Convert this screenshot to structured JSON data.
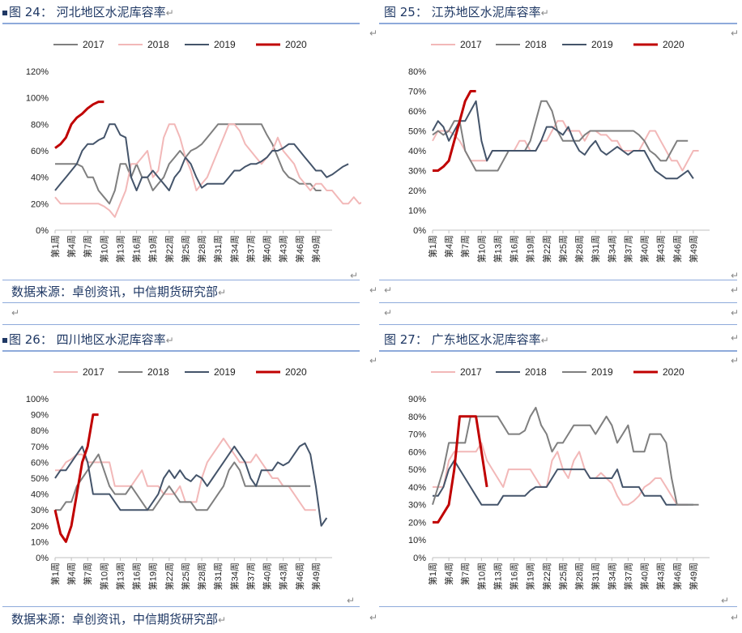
{
  "figures": [
    {
      "caption": "图 24：  河北地区水泥库容率",
      "chart_data": {
        "type": "line",
        "title": "",
        "ylim": [
          0,
          120
        ],
        "yticks": [
          "0%",
          "20%",
          "40%",
          "60%",
          "80%",
          "100%",
          "120%"
        ],
        "xticks": [
          "第1周",
          "第4周",
          "第7周",
          "第10周",
          "第13周",
          "第16周",
          "第19周",
          "第22周",
          "第25周",
          "第28周",
          "第31周",
          "第34周",
          "第37周",
          "第40周",
          "第43周",
          "第46周",
          "第49周"
        ],
        "legend_position": "top",
        "series": [
          {
            "name": "2017",
            "color": "#7f7f7f",
            "values": [
              50,
              50,
              50,
              50,
              50,
              48,
              40,
              40,
              30,
              25,
              20,
              30,
              50,
              50,
              40,
              50,
              40,
              40,
              30,
              35,
              40,
              50,
              55,
              60,
              55,
              60,
              62,
              65,
              70,
              75,
              80,
              80,
              80,
              80,
              80,
              80,
              80,
              80,
              80,
              72,
              65,
              55,
              45,
              40,
              38,
              35,
              35,
              35,
              30,
              30
            ]
          },
          {
            "name": "2018",
            "color": "#f2b8b8",
            "values": [
              25,
              20,
              20,
              20,
              20,
              20,
              20,
              20,
              20,
              18,
              15,
              10,
              20,
              30,
              50,
              50,
              55,
              60,
              40,
              45,
              70,
              80,
              80,
              70,
              55,
              45,
              30,
              35,
              40,
              50,
              60,
              70,
              80,
              80,
              75,
              65,
              60,
              55,
              50,
              55,
              60,
              70,
              60,
              55,
              50,
              40,
              35,
              30,
              35,
              35,
              30,
              30,
              25,
              20,
              20,
              25,
              20,
              22,
              30
            ]
          },
          {
            "name": "2019",
            "color": "#44546a",
            "values": [
              30,
              35,
              40,
              45,
              50,
              60,
              65,
              65,
              68,
              70,
              80,
              80,
              72,
              70,
              40,
              30,
              40,
              40,
              45,
              40,
              35,
              30,
              40,
              45,
              55,
              50,
              40,
              32,
              35,
              35,
              35,
              35,
              40,
              45,
              45,
              48,
              50,
              50,
              52,
              55,
              60,
              60,
              62,
              65,
              65,
              60,
              55,
              50,
              45,
              45,
              40,
              42,
              45,
              48,
              50
            ]
          },
          {
            "name": "2020",
            "color": "#c00000",
            "values": [
              62,
              65,
              70,
              80,
              85,
              88,
              92,
              95,
              97,
              97
            ]
          }
        ]
      },
      "source": "数据来源：卓创资讯，中信期货研究部"
    },
    {
      "caption": "图 25：  江苏地区水泥库容率",
      "chart_data": {
        "type": "line",
        "title": "",
        "ylim": [
          0,
          80
        ],
        "yticks": [
          "0%",
          "10%",
          "20%",
          "30%",
          "40%",
          "50%",
          "60%",
          "70%",
          "80%"
        ],
        "xticks": [
          "第1周",
          "第4周",
          "第7周",
          "第10周",
          "第13周",
          "第16周",
          "第19周",
          "第22周",
          "第25周",
          "第28周",
          "第31周",
          "第34周",
          "第37周",
          "第40周",
          "第43周",
          "第46周",
          "第49周"
        ],
        "legend_position": "top",
        "series": [
          {
            "name": "2017",
            "color": "#f2b8b8",
            "values": [
              45,
              50,
              50,
              50,
              48,
              45,
              40,
              35,
              35,
              35,
              35,
              40,
              40,
              40,
              40,
              40,
              45,
              45,
              40,
              40,
              45,
              45,
              50,
              55,
              55,
              50,
              50,
              50,
              45,
              50,
              50,
              48,
              48,
              45,
              45,
              40,
              40,
              40,
              40,
              45,
              50,
              50,
              45,
              40,
              35,
              35,
              30,
              35,
              40,
              40
            ]
          },
          {
            "name": "2018",
            "color": "#7f7f7f",
            "values": [
              48,
              50,
              48,
              50,
              55,
              55,
              40,
              35,
              30,
              30,
              30,
              30,
              30,
              35,
              40,
              40,
              40,
              40,
              45,
              55,
              65,
              65,
              60,
              50,
              45,
              45,
              45,
              45,
              48,
              50,
              50,
              50,
              50,
              50,
              50,
              50,
              50,
              50,
              48,
              45,
              40,
              38,
              35,
              35,
              40,
              45,
              45,
              45
            ]
          },
          {
            "name": "2019",
            "color": "#44546a",
            "values": [
              50,
              55,
              52,
              45,
              50,
              55,
              55,
              60,
              65,
              45,
              35,
              40,
              40,
              40,
              40,
              40,
              40,
              40,
              40,
              40,
              45,
              52,
              52,
              50,
              48,
              52,
              45,
              40,
              38,
              42,
              45,
              40,
              38,
              40,
              42,
              40,
              38,
              40,
              40,
              40,
              35,
              30,
              28,
              26,
              26,
              26,
              28,
              30,
              26
            ]
          },
          {
            "name": "2020",
            "color": "#c00000",
            "values": [
              30,
              30,
              32,
              35,
              45,
              55,
              65,
              70,
              70
            ]
          }
        ]
      },
      "source": ""
    },
    {
      "caption": "图 26：   四川地区水泥库容率",
      "chart_data": {
        "type": "line",
        "title": "",
        "ylim": [
          0,
          100
        ],
        "yticks": [
          "0%",
          "10%",
          "20%",
          "30%",
          "40%",
          "50%",
          "60%",
          "70%",
          "80%",
          "90%",
          "100%"
        ],
        "xticks": [
          "第1周",
          "第4周",
          "第7周",
          "第10周",
          "第13周",
          "第16周",
          "第19周",
          "第22周",
          "第25周",
          "第28周",
          "第31周",
          "第34周",
          "第37周",
          "第40周",
          "第43周",
          "第46周",
          "第49周"
        ],
        "legend_position": "top",
        "series": [
          {
            "name": "2017",
            "color": "#f2b8b8",
            "values": [
              55,
              55,
              60,
              62,
              65,
              65,
              60,
              60,
              60,
              60,
              60,
              45,
              45,
              45,
              45,
              50,
              55,
              45,
              45,
              45,
              40,
              40,
              40,
              45,
              35,
              35,
              35,
              50,
              60,
              65,
              70,
              75,
              70,
              65,
              60,
              60,
              60,
              65,
              60,
              55,
              50,
              50,
              45,
              45,
              40,
              35,
              30,
              30,
              30
            ]
          },
          {
            "name": "2018",
            "color": "#7f7f7f",
            "values": [
              30,
              30,
              35,
              35,
              45,
              50,
              55,
              60,
              65,
              55,
              45,
              40,
              40,
              40,
              45,
              40,
              35,
              30,
              30,
              35,
              40,
              45,
              40,
              35,
              35,
              35,
              30,
              30,
              30,
              35,
              40,
              45,
              55,
              60,
              55,
              45,
              45,
              45,
              45,
              45,
              45,
              45,
              45,
              45,
              45,
              45,
              45,
              45
            ]
          },
          {
            "name": "2019",
            "color": "#44546a",
            "values": [
              50,
              55,
              55,
              60,
              65,
              70,
              60,
              40,
              40,
              40,
              40,
              35,
              30,
              30,
              30,
              30,
              30,
              30,
              35,
              40,
              50,
              55,
              50,
              55,
              50,
              48,
              52,
              50,
              45,
              50,
              55,
              60,
              65,
              70,
              65,
              60,
              50,
              45,
              55,
              55,
              55,
              60,
              58,
              60,
              65,
              70,
              72,
              65,
              45,
              20,
              25
            ]
          },
          {
            "name": "2020",
            "color": "#c00000",
            "values": [
              30,
              15,
              10,
              20,
              40,
              60,
              70,
              90,
              90
            ]
          }
        ]
      },
      "source": "数据来源：卓创资讯，中信期货研究部"
    },
    {
      "caption": "图 27：  广东地区水泥库容率",
      "chart_data": {
        "type": "line",
        "title": "",
        "ylim": [
          0,
          90
        ],
        "yticks": [
          "0%",
          "10%",
          "20%",
          "30%",
          "40%",
          "50%",
          "60%",
          "70%",
          "80%",
          "90%"
        ],
        "xticks": [
          "第1周",
          "第4周",
          "第7周",
          "第10周",
          "第13周",
          "第16周",
          "第19周",
          "第22周",
          "第25周",
          "第28周",
          "第31周",
          "第34周",
          "第37周",
          "第40周",
          "第43周",
          "第46周",
          "第49周"
        ],
        "legend_position": "top",
        "series": [
          {
            "name": "2017",
            "color": "#f2b8b8",
            "values": [
              40,
              40,
              40,
              55,
              60,
              60,
              60,
              60,
              60,
              65,
              55,
              50,
              45,
              40,
              50,
              50,
              50,
              50,
              50,
              45,
              40,
              40,
              55,
              60,
              50,
              45,
              55,
              60,
              50,
              45,
              45,
              48,
              45,
              42,
              35,
              30,
              30,
              32,
              35,
              40,
              42,
              45,
              45,
              40,
              35,
              30,
              30,
              30
            ]
          },
          {
            "name": "2018",
            "color": "#44546a",
            "values": [
              35,
              35,
              40,
              50,
              55,
              50,
              45,
              40,
              35,
              30,
              30,
              30,
              30,
              35,
              35,
              35,
              35,
              35,
              38,
              40,
              40,
              40,
              45,
              50,
              50,
              50,
              50,
              50,
              50,
              45,
              45,
              45,
              45,
              45,
              50,
              40,
              40,
              40,
              40,
              35,
              35,
              35,
              35,
              30,
              30,
              30,
              30,
              30,
              30
            ]
          },
          {
            "name": "2019",
            "color": "#7f7f7f",
            "values": [
              30,
              40,
              50,
              65,
              65,
              65,
              65,
              80,
              80,
              80,
              80,
              80,
              80,
              75,
              70,
              70,
              70,
              72,
              80,
              85,
              75,
              70,
              60,
              65,
              65,
              70,
              75,
              75,
              75,
              75,
              70,
              75,
              80,
              75,
              65,
              70,
              75,
              60,
              60,
              60,
              70,
              70,
              70,
              65,
              45,
              30,
              30,
              30,
              30,
              30
            ]
          },
          {
            "name": "2020",
            "color": "#c00000",
            "values": [
              20,
              20,
              25,
              30,
              50,
              80,
              80,
              80,
              80,
              60,
              40
            ]
          }
        ]
      },
      "source": ""
    }
  ]
}
